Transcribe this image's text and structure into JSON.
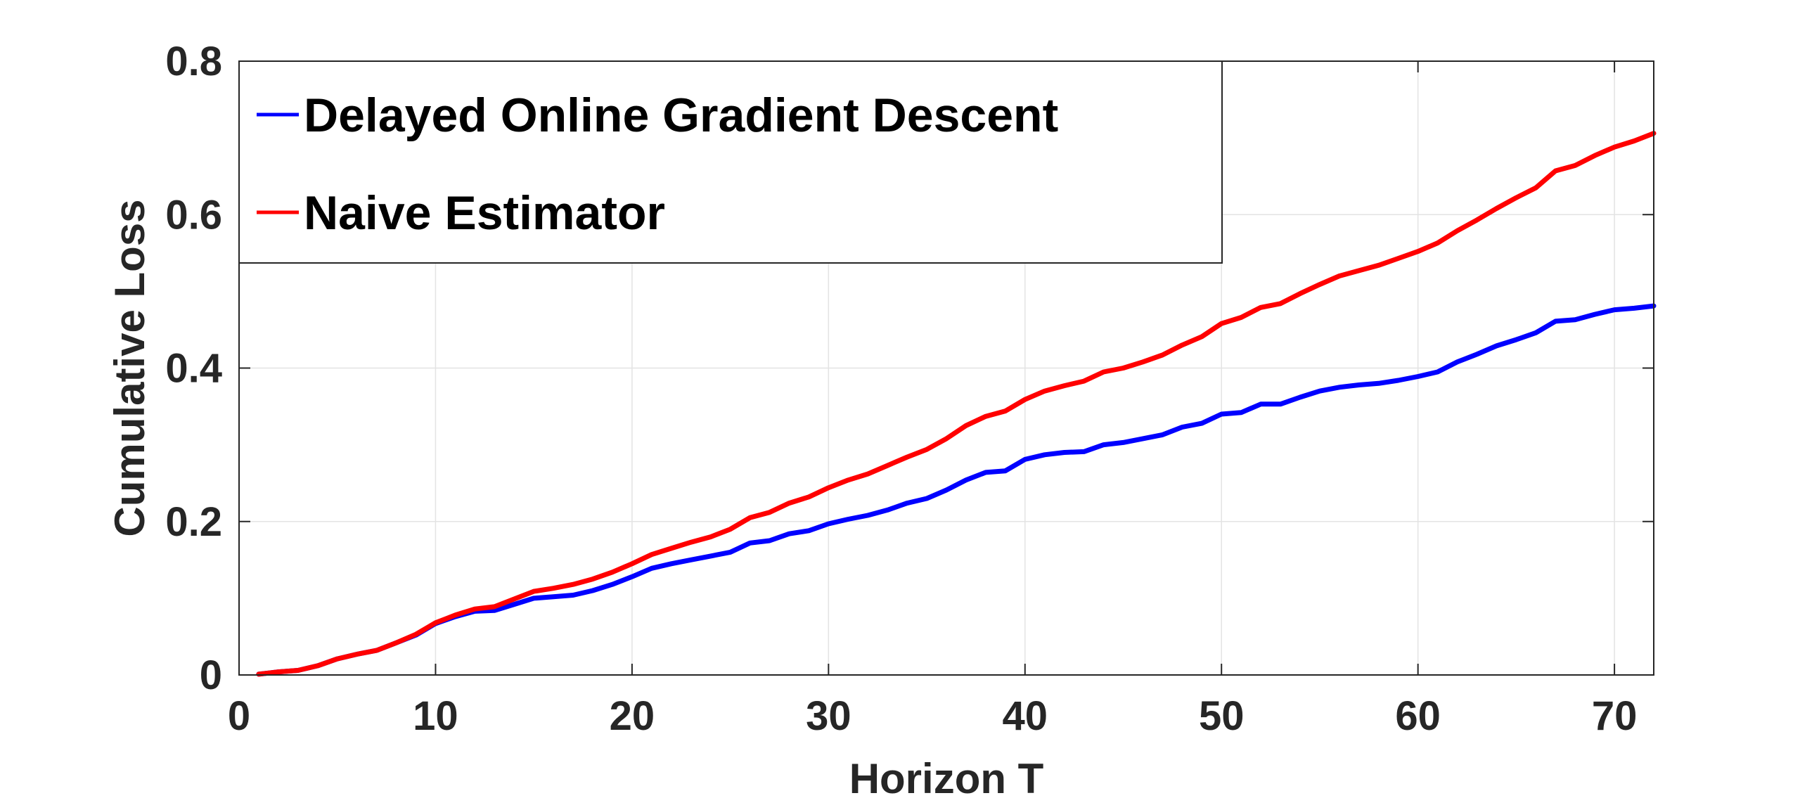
{
  "chart_data": {
    "type": "line",
    "xlabel": "Horizon T",
    "ylabel": "Cumulative Loss",
    "xlim": [
      0,
      72
    ],
    "ylim": [
      0,
      0.8
    ],
    "xticks": [
      0,
      10,
      20,
      30,
      40,
      50,
      60,
      70
    ],
    "yticks": [
      0,
      0.2,
      0.4,
      0.6,
      0.8
    ],
    "xtick_labels": [
      "0",
      "10",
      "20",
      "30",
      "40",
      "50",
      "60",
      "70"
    ],
    "ytick_labels": [
      "0",
      "0.2",
      "0.4",
      "0.6",
      "0.8"
    ],
    "grid": true,
    "legend_position": "top-left",
    "x": [
      1,
      2,
      3,
      4,
      5,
      6,
      7,
      8,
      9,
      10,
      11,
      12,
      13,
      14,
      15,
      16,
      17,
      18,
      19,
      20,
      21,
      22,
      23,
      24,
      25,
      26,
      27,
      28,
      29,
      30,
      31,
      32,
      33,
      34,
      35,
      36,
      37,
      38,
      39,
      40,
      41,
      42,
      43,
      44,
      45,
      46,
      47,
      48,
      49,
      50,
      51,
      52,
      53,
      54,
      55,
      56,
      57,
      58,
      59,
      60,
      61,
      62,
      63,
      64,
      65,
      66,
      67,
      68,
      69,
      70,
      71,
      72
    ],
    "series": [
      {
        "name": "Delayed Online Gradient Descent",
        "color": "#0000ff",
        "values": [
          0.001,
          0.004,
          0.006,
          0.012,
          0.021,
          0.027,
          0.032,
          0.042,
          0.052,
          0.067,
          0.076,
          0.083,
          0.084,
          0.092,
          0.1,
          0.102,
          0.104,
          0.11,
          0.118,
          0.128,
          0.139,
          0.145,
          0.15,
          0.155,
          0.16,
          0.172,
          0.175,
          0.184,
          0.188,
          0.197,
          0.203,
          0.208,
          0.215,
          0.224,
          0.23,
          0.241,
          0.254,
          0.264,
          0.266,
          0.281,
          0.287,
          0.29,
          0.291,
          0.3,
          0.303,
          0.308,
          0.313,
          0.323,
          0.328,
          0.34,
          0.342,
          0.353,
          0.353,
          0.362,
          0.37,
          0.375,
          0.378,
          0.38,
          0.384,
          0.389,
          0.395,
          0.408,
          0.418,
          0.429,
          0.437,
          0.446,
          0.461,
          0.463,
          0.47,
          0.476,
          0.478,
          0.481
        ]
      },
      {
        "name": "Naive Estimator",
        "color": "#ff0000",
        "values": [
          0.001,
          0.004,
          0.006,
          0.012,
          0.021,
          0.027,
          0.032,
          0.042,
          0.053,
          0.068,
          0.078,
          0.086,
          0.089,
          0.099,
          0.109,
          0.113,
          0.118,
          0.125,
          0.134,
          0.145,
          0.157,
          0.165,
          0.173,
          0.18,
          0.19,
          0.205,
          0.212,
          0.224,
          0.232,
          0.244,
          0.254,
          0.262,
          0.273,
          0.284,
          0.294,
          0.308,
          0.325,
          0.337,
          0.344,
          0.359,
          0.37,
          0.377,
          0.383,
          0.395,
          0.4,
          0.408,
          0.417,
          0.43,
          0.441,
          0.458,
          0.466,
          0.479,
          0.484,
          0.497,
          0.509,
          0.52,
          0.527,
          0.534,
          0.543,
          0.552,
          0.563,
          0.579,
          0.593,
          0.608,
          0.622,
          0.635,
          0.657,
          0.664,
          0.677,
          0.688,
          0.696,
          0.706
        ]
      }
    ]
  }
}
